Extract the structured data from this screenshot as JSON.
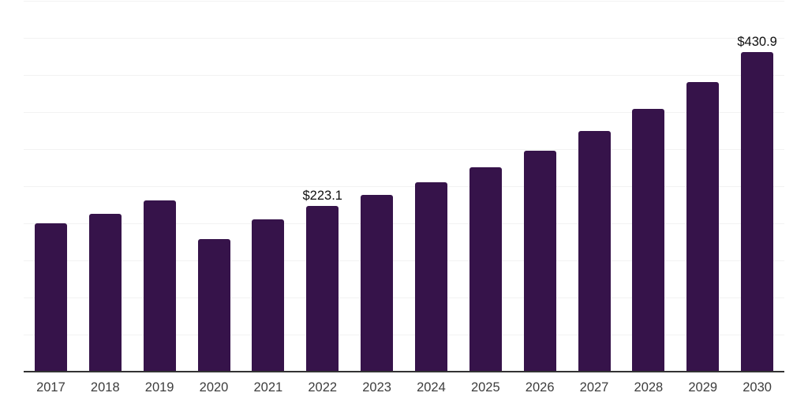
{
  "chart_data": {
    "type": "bar",
    "title": "",
    "xlabel": "",
    "ylabel": "",
    "categories": [
      "2017",
      "2018",
      "2019",
      "2020",
      "2021",
      "2022",
      "2023",
      "2024",
      "2025",
      "2026",
      "2027",
      "2028",
      "2029",
      "2030"
    ],
    "values": [
      200,
      213,
      231,
      179,
      205,
      223.1,
      238,
      255,
      276,
      298,
      324,
      354,
      390,
      430.9
    ],
    "data_labels": [
      "",
      "",
      "",
      "",
      "",
      "$223.1",
      "",
      "",
      "",
      "",
      "",
      "",
      "",
      "$430.9"
    ],
    "ylim": [
      0,
      500
    ],
    "grid_step": 50,
    "grid": "on",
    "legend": "none",
    "y_axis_tick_labels": "none",
    "colors": {
      "bar": "#36134a",
      "axis_line": "#333333",
      "gridline": "#f2f2f2",
      "tick_label": "#3d3d3d",
      "data_label": "#0f0f0f",
      "background": "#ffffff"
    }
  }
}
